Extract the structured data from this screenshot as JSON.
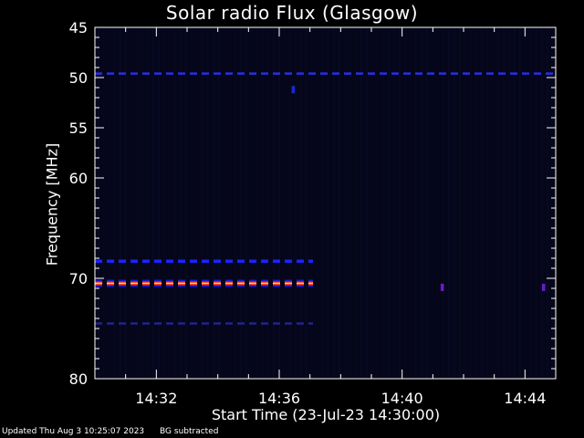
{
  "chart_data": {
    "type": "heatmap",
    "title": "Solar radio Flux (Glasgow)",
    "xlabel": "Start Time (23-Jul-23 14:30:00)",
    "ylabel": "Frequency [MHz]",
    "x_ticks": [
      "14:32",
      "14:36",
      "14:40",
      "14:44"
    ],
    "x_tick_minutes": [
      2,
      6,
      10,
      14
    ],
    "xlim_minutes": [
      0,
      15
    ],
    "y_ticks": [
      "45",
      "50",
      "55",
      "60",
      "70",
      "80"
    ],
    "y_tick_values": [
      45,
      50,
      55,
      60,
      70,
      80
    ],
    "ylim": [
      45,
      80
    ],
    "background_color": "#05061a",
    "bands": [
      {
        "freq": 49.6,
        "t_start": 0,
        "t_end": 15,
        "color": "#2a2ee8",
        "dashed": true,
        "intensity": "low"
      },
      {
        "freq": 68.3,
        "t_start": 0,
        "t_end": 7.1,
        "color": "#1a24ff",
        "dashed": true,
        "intensity": "medium"
      },
      {
        "freq": 70.5,
        "t_start": 0,
        "t_end": 7.1,
        "color": "#ff3a1a",
        "dashed": true,
        "intensity": "high"
      },
      {
        "freq": 74.5,
        "t_start": 0,
        "t_end": 7.1,
        "color": "#22248a",
        "dashed": true,
        "intensity": "low"
      }
    ],
    "spots": [
      {
        "freq": 51.2,
        "t": 6.45,
        "color": "#1a2acc"
      },
      {
        "freq": 70.9,
        "t": 11.3,
        "color": "#6a1acc"
      },
      {
        "freq": 70.9,
        "t": 14.6,
        "color": "#6a1acc"
      }
    ]
  },
  "footer": {
    "updated": "Updated Thu Aug  3 10:25:07 2023",
    "note": "BG subtracted"
  }
}
